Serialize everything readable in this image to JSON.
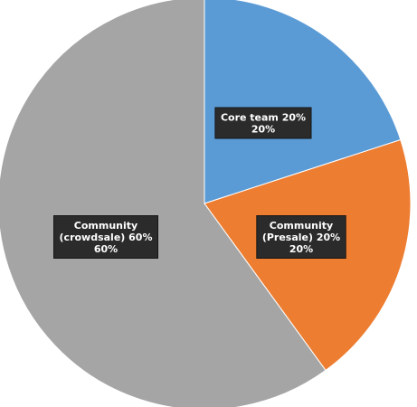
{
  "chart_data": {
    "type": "pie",
    "title": "",
    "slices": [
      {
        "label": "Core team",
        "value": 20,
        "color": "#5b9bd5",
        "label_lines": [
          "Core team 20%",
          "20%"
        ]
      },
      {
        "label": "Community (Presale)",
        "value": 20,
        "color": "#ed7d31",
        "label_lines": [
          "Community",
          "(Presale) 20%",
          "20%"
        ]
      },
      {
        "label": "Community (crowdsale)",
        "value": 60,
        "color": "#a5a5a5",
        "label_lines": [
          "Community",
          "(crowdsale) 60%",
          "60%"
        ]
      }
    ],
    "start_angle_deg": -90,
    "direction": "clockwise",
    "legend": "none"
  }
}
